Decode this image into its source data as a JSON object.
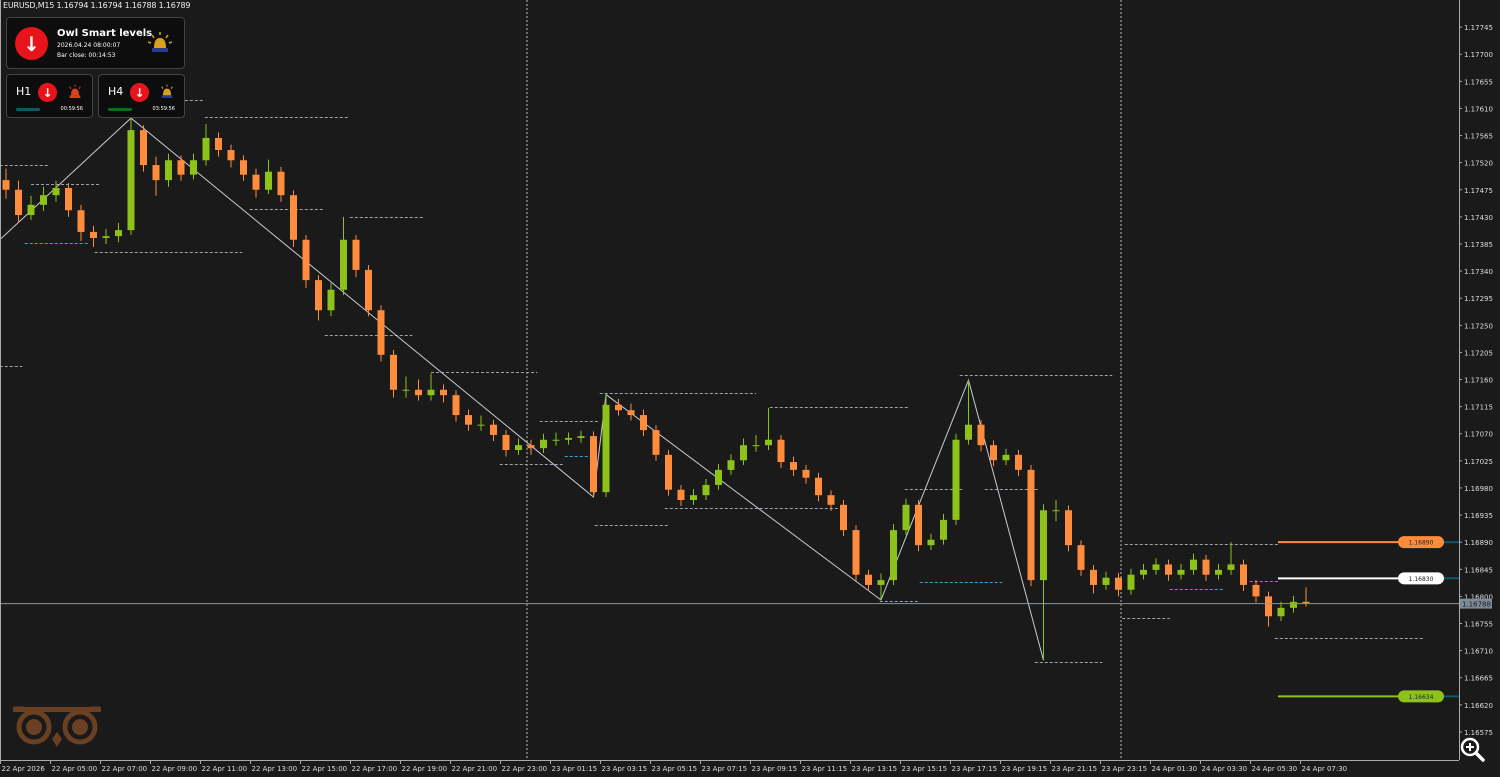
{
  "header": {
    "symbol_line": "EURUSD,M15  1.16794 1.16794 1.16788 1.16789"
  },
  "indicator": {
    "name": "Owl Smart levels",
    "datetime": "2026.04.24 08:00:07",
    "bar_close": "Bar close: 00:14:53",
    "signal": "down",
    "icon": "alarm-beacon-icon",
    "panels": [
      {
        "tf": "H1",
        "signal": "down",
        "timer": "00:59:56",
        "bar_color": "#0e5a6a",
        "beacon_color": "#d9411c"
      },
      {
        "tf": "H4",
        "signal": "down",
        "timer": "03:59:56",
        "bar_color": "#0f6e1e",
        "beacon_color": "#d9a21c"
      }
    ]
  },
  "colors": {
    "bull": "#8cc21a",
    "bear": "#ff8b3d",
    "background": "#1a1a1a",
    "grid_dash": "#9aa4b0",
    "support_dash": "#2ea8d8",
    "current_price": "#8d949c",
    "logo": "#6b3f22"
  },
  "chart_data": {
    "type": "candlestick",
    "title": "EURUSD,M15",
    "ylim": [
      1.1655,
      1.1779
    ],
    "grid": false,
    "y_ticks": [
      "1.17745",
      "1.17700",
      "1.17655",
      "1.17610",
      "1.17565",
      "1.17520",
      "1.17475",
      "1.17430",
      "1.17385",
      "1.17340",
      "1.17295",
      "1.17250",
      "1.17205",
      "1.17160",
      "1.17115",
      "1.17070",
      "1.17025",
      "1.16980",
      "1.16935",
      "1.16890",
      "1.16845",
      "1.16800",
      "1.16755",
      "1.16710",
      "1.16665",
      "1.16620",
      "1.16575"
    ],
    "x_ticks": [
      "22 Apr 2026",
      "22 Apr 05:00",
      "22 Apr 07:00",
      "22 Apr 09:00",
      "22 Apr 11:00",
      "22 Apr 13:00",
      "22 Apr 15:00",
      "22 Apr 17:00",
      "22 Apr 19:00",
      "22 Apr 21:00",
      "22 Apr 23:00",
      "23 Apr 01:15",
      "23 Apr 03:15",
      "23 Apr 05:15",
      "23 Apr 07:15",
      "23 Apr 09:15",
      "23 Apr 11:15",
      "23 Apr 13:15",
      "23 Apr 15:15",
      "23 Apr 17:15",
      "23 Apr 19:15",
      "23 Apr 21:15",
      "23 Apr 23:15",
      "24 Apr 01:30",
      "24 Apr 03:30",
      "24 Apr 05:30",
      "24 Apr 07:30"
    ],
    "current_price": "1.16788",
    "ohlc": [
      [
        1.17491,
        1.1751,
        1.1746,
        1.17475
      ],
      [
        1.17475,
        1.1749,
        1.1742,
        1.17433
      ],
      [
        1.17433,
        1.17465,
        1.17425,
        1.1745
      ],
      [
        1.1745,
        1.1748,
        1.1744,
        1.17466
      ],
      [
        1.17466,
        1.1749,
        1.17455,
        1.17478
      ],
      [
        1.17478,
        1.17486,
        1.1743,
        1.17441
      ],
      [
        1.17441,
        1.1745,
        1.1739,
        1.17405
      ],
      [
        1.17405,
        1.17415,
        1.1738,
        1.17395
      ],
      [
        1.17395,
        1.1741,
        1.17385,
        1.17398
      ],
      [
        1.17398,
        1.1742,
        1.17388,
        1.17408
      ],
      [
        1.17408,
        1.17594,
        1.174,
        1.17574
      ],
      [
        1.17574,
        1.17582,
        1.17505,
        1.17516
      ],
      [
        1.17516,
        1.1753,
        1.17465,
        1.17491
      ],
      [
        1.17491,
        1.17535,
        1.1748,
        1.17524
      ],
      [
        1.17524,
        1.17532,
        1.1749,
        1.175
      ],
      [
        1.175,
        1.17535,
        1.17492,
        1.17524
      ],
      [
        1.17524,
        1.17584,
        1.17515,
        1.17561
      ],
      [
        1.17561,
        1.1757,
        1.1753,
        1.17541
      ],
      [
        1.17541,
        1.1755,
        1.17512,
        1.17524
      ],
      [
        1.17524,
        1.17532,
        1.1749,
        1.175
      ],
      [
        1.175,
        1.1751,
        1.17462,
        1.17475
      ],
      [
        1.17475,
        1.17525,
        1.17468,
        1.17505
      ],
      [
        1.17505,
        1.17513,
        1.17455,
        1.17466
      ],
      [
        1.17466,
        1.17474,
        1.1738,
        1.17392
      ],
      [
        1.17392,
        1.174,
        1.17312,
        1.17325
      ],
      [
        1.17325,
        1.17333,
        1.17258,
        1.17275
      ],
      [
        1.17275,
        1.1732,
        1.17265,
        1.17309
      ],
      [
        1.17309,
        1.1743,
        1.173,
        1.17392
      ],
      [
        1.17392,
        1.174,
        1.1733,
        1.17342
      ],
      [
        1.17342,
        1.1735,
        1.17265,
        1.17275
      ],
      [
        1.17275,
        1.17283,
        1.1719,
        1.17201
      ],
      [
        1.17201,
        1.17209,
        1.1713,
        1.17143
      ],
      [
        1.17143,
        1.17165,
        1.1713,
        1.17143
      ],
      [
        1.17143,
        1.1716,
        1.17125,
        1.17134
      ],
      [
        1.17134,
        1.1717,
        1.17125,
        1.17143
      ],
      [
        1.17143,
        1.17152,
        1.17122,
        1.17134
      ],
      [
        1.17134,
        1.17142,
        1.1709,
        1.17101
      ],
      [
        1.17101,
        1.1711,
        1.17075,
        1.17085
      ],
      [
        1.17085,
        1.171,
        1.17075,
        1.17085
      ],
      [
        1.17085,
        1.17093,
        1.17058,
        1.17068
      ],
      [
        1.17068,
        1.17076,
        1.17032,
        1.17043
      ],
      [
        1.17043,
        1.17062,
        1.17035,
        1.17051
      ],
      [
        1.17051,
        1.1706,
        1.17035,
        1.17046
      ],
      [
        1.17046,
        1.1707,
        1.17038,
        1.1706
      ],
      [
        1.1706,
        1.17072,
        1.1705,
        1.1706
      ],
      [
        1.1706,
        1.17072,
        1.17052,
        1.17063
      ],
      [
        1.17063,
        1.17075,
        1.17055,
        1.17066
      ],
      [
        1.17066,
        1.17074,
        1.16965,
        1.16973
      ],
      [
        1.16973,
        1.17135,
        1.16965,
        1.17118
      ],
      [
        1.17118,
        1.17128,
        1.171,
        1.17109
      ],
      [
        1.17109,
        1.1712,
        1.17092,
        1.17101
      ],
      [
        1.17101,
        1.1711,
        1.17066,
        1.17076
      ],
      [
        1.17076,
        1.17084,
        1.17025,
        1.17035
      ],
      [
        1.17035,
        1.17043,
        1.16967,
        1.16977
      ],
      [
        1.16977,
        1.16985,
        1.1695,
        1.1696
      ],
      [
        1.1696,
        1.16978,
        1.16952,
        1.16968
      ],
      [
        1.16968,
        1.16995,
        1.1696,
        1.16985
      ],
      [
        1.16985,
        1.1702,
        1.16977,
        1.1701
      ],
      [
        1.1701,
        1.17036,
        1.17002,
        1.17026
      ],
      [
        1.17026,
        1.17062,
        1.17018,
        1.17051
      ],
      [
        1.17051,
        1.17068,
        1.1704,
        1.17051
      ],
      [
        1.17051,
        1.17113,
        1.17043,
        1.1706
      ],
      [
        1.1706,
        1.17068,
        1.17013,
        1.17023
      ],
      [
        1.17023,
        1.17032,
        1.17,
        1.1701
      ],
      [
        1.1701,
        1.17018,
        1.16987,
        1.16997
      ],
      [
        1.16997,
        1.17005,
        1.16958,
        1.16968
      ],
      [
        1.16968,
        1.16976,
        1.16942,
        1.16952
      ],
      [
        1.16952,
        1.1696,
        1.169,
        1.1691
      ],
      [
        1.1691,
        1.16918,
        1.16826,
        1.16836
      ],
      [
        1.16836,
        1.16844,
        1.16809,
        1.16819
      ],
      [
        1.16819,
        1.16838,
        1.16794,
        1.16827
      ],
      [
        1.16827,
        1.1692,
        1.16819,
        1.1691
      ],
      [
        1.1691,
        1.16962,
        1.16902,
        1.16952
      ],
      [
        1.16952,
        1.1696,
        1.16875,
        1.16885
      ],
      [
        1.16885,
        1.16904,
        1.16877,
        1.16894
      ],
      [
        1.16894,
        1.16937,
        1.16886,
        1.16927
      ],
      [
        1.16927,
        1.1707,
        1.16919,
        1.1706
      ],
      [
        1.1706,
        1.17159,
        1.17052,
        1.17085
      ],
      [
        1.17085,
        1.17093,
        1.17041,
        1.17051
      ],
      [
        1.17051,
        1.17059,
        1.17016,
        1.17026
      ],
      [
        1.17026,
        1.17045,
        1.17018,
        1.17035
      ],
      [
        1.17035,
        1.17043,
        1.17,
        1.1701
      ],
      [
        1.1701,
        1.17018,
        1.16817,
        1.16827
      ],
      [
        1.16827,
        1.16953,
        1.16694,
        1.16943
      ],
      [
        1.16943,
        1.1696,
        1.16925,
        1.16943
      ],
      [
        1.16943,
        1.16951,
        1.16875,
        1.16885
      ],
      [
        1.16885,
        1.16893,
        1.16834,
        1.16844
      ],
      [
        1.16844,
        1.16852,
        1.16805,
        1.16819
      ],
      [
        1.16819,
        1.16841,
        1.16811,
        1.16831
      ],
      [
        1.16831,
        1.16839,
        1.168,
        1.16811
      ],
      [
        1.16811,
        1.16846,
        1.16803,
        1.16836
      ],
      [
        1.16836,
        1.16854,
        1.16828,
        1.16844
      ],
      [
        1.16844,
        1.16863,
        1.16836,
        1.16853
      ],
      [
        1.16853,
        1.16861,
        1.16826,
        1.16836
      ],
      [
        1.16836,
        1.16854,
        1.16828,
        1.16844
      ],
      [
        1.16844,
        1.16871,
        1.16836,
        1.16861
      ],
      [
        1.16861,
        1.16869,
        1.16826,
        1.16836
      ],
      [
        1.16836,
        1.16854,
        1.16828,
        1.16844
      ],
      [
        1.16844,
        1.1689,
        1.16836,
        1.16853
      ],
      [
        1.16853,
        1.16861,
        1.16809,
        1.16819
      ],
      [
        1.16819,
        1.16827,
        1.1679,
        1.168
      ],
      [
        1.168,
        1.16808,
        1.1675,
        1.16767
      ],
      [
        1.16767,
        1.16791,
        1.16759,
        1.16781
      ],
      [
        1.16781,
        1.16801,
        1.16773,
        1.16791
      ],
      [
        1.16791,
        1.16815,
        1.16783,
        1.16789
      ]
    ],
    "zigzag": [
      [
        -0.5,
        1.17392
      ],
      [
        10,
        1.17594
      ],
      [
        47,
        1.16965
      ],
      [
        48,
        1.17135
      ],
      [
        70,
        1.16794
      ],
      [
        77,
        1.17159
      ],
      [
        83,
        1.16694
      ]
    ],
    "levels_dashed": [
      {
        "from": -0.5,
        "to": 3.5,
        "price": 1.17516,
        "kind": "resistance"
      },
      {
        "from": 2,
        "to": 7.5,
        "price": 1.17485,
        "kind": "resistance"
      },
      {
        "from": 1.5,
        "to": 6.7,
        "price": 1.17387,
        "kind": "support"
      },
      {
        "from": 7.1,
        "to": 18.9,
        "price": 1.17372,
        "kind": "resistance"
      },
      {
        "from": 11.5,
        "to": 15.9,
        "price": 1.17624,
        "kind": "resistance"
      },
      {
        "from": 15.9,
        "to": 27.5,
        "price": 1.17596,
        "kind": "resistance"
      },
      {
        "from": 19.5,
        "to": 25.5,
        "price": 1.17443,
        "kind": "resistance"
      },
      {
        "from": 27.5,
        "to": 33.5,
        "price": 1.1743,
        "kind": "resistance"
      },
      {
        "from": 25.5,
        "to": 32.5,
        "price": 1.17234,
        "kind": "resistance"
      },
      {
        "from": -0.5,
        "to": 1.3,
        "price": 1.17183,
        "kind": "resistance"
      },
      {
        "from": 34,
        "to": 42.5,
        "price": 1.17173,
        "kind": "resistance"
      },
      {
        "from": 47.5,
        "to": 60,
        "price": 1.17138,
        "kind": "resistance"
      },
      {
        "from": 42.7,
        "to": 47.5,
        "price": 1.17091,
        "kind": "resistance"
      },
      {
        "from": 39.5,
        "to": 44.7,
        "price": 1.1702,
        "kind": "resistance"
      },
      {
        "from": 44.7,
        "to": 47.1,
        "price": 1.17033,
        "kind": "support"
      },
      {
        "from": 47.1,
        "to": 53.1,
        "price": 1.16919,
        "kind": "resistance"
      },
      {
        "from": 61.1,
        "to": 72.2,
        "price": 1.17114,
        "kind": "resistance"
      },
      {
        "from": 52.7,
        "to": 66.7,
        "price": 1.16947,
        "kind": "resistance"
      },
      {
        "from": 71.9,
        "to": 76.5,
        "price": 1.16978,
        "kind": "resistance"
      },
      {
        "from": 73.1,
        "to": 79.7,
        "price": 1.16824,
        "kind": "support"
      },
      {
        "from": 69.9,
        "to": 73,
        "price": 1.16792,
        "kind": "resistance"
      },
      {
        "from": 76.3,
        "to": 88.5,
        "price": 1.17168,
        "kind": "resistance"
      },
      {
        "from": 78.3,
        "to": 82.6,
        "price": 1.16978,
        "kind": "resistance"
      },
      {
        "from": 82.3,
        "to": 87.7,
        "price": 1.16691,
        "kind": "resistance"
      },
      {
        "from": 89.5,
        "to": 101.8,
        "price": 1.16887,
        "kind": "resistance"
      },
      {
        "from": 93.1,
        "to": 97.5,
        "price": 1.16812,
        "kind": "support"
      },
      {
        "from": 99.5,
        "to": 101.8,
        "price": 1.16826,
        "kind": "support"
      },
      {
        "from": 89.3,
        "to": 93.1,
        "price": 1.16764,
        "kind": "resistance"
      },
      {
        "from": 101.5,
        "to": 113.5,
        "price": 1.16731,
        "kind": "resistance"
      }
    ],
    "levels_solid": [
      {
        "price": 1.1689,
        "label": "1.16890",
        "color": "#ff8b3d"
      },
      {
        "price": 1.1683,
        "label": "1.16830",
        "color": "#ffffff"
      },
      {
        "price": 1.16634,
        "label": "1.16634",
        "color": "#8cc21a"
      }
    ],
    "day_separators": [
      "23 Apr 00:00",
      "24 Apr 00:00"
    ]
  },
  "footer": {
    "zoom_icon": "magnifier-zoom-icon",
    "logo": "owl-logo"
  }
}
